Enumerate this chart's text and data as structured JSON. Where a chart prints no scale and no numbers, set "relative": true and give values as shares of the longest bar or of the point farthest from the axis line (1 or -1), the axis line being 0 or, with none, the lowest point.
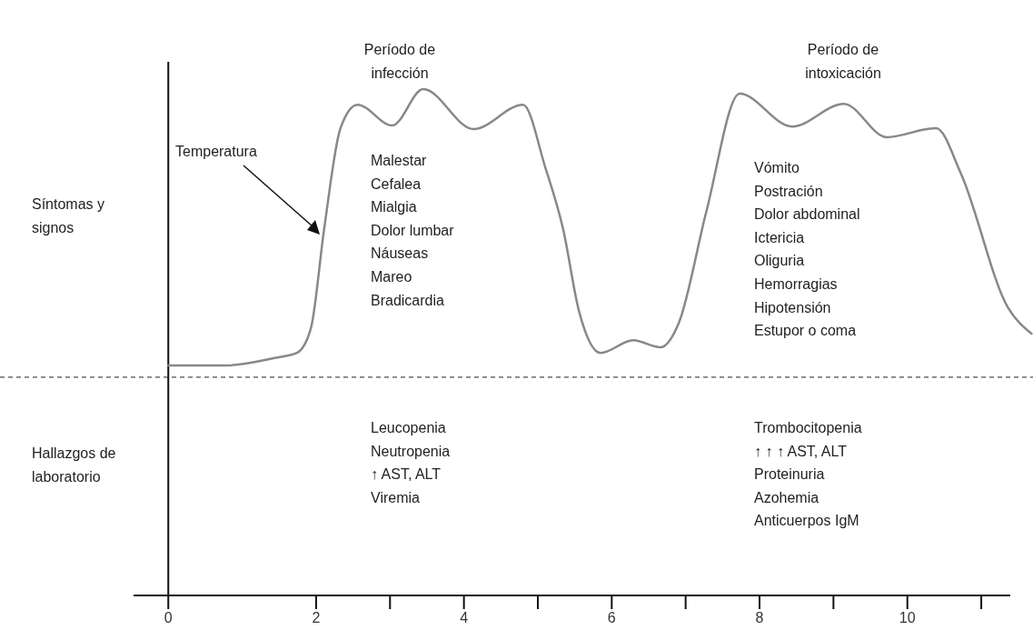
{
  "chart_data": {
    "type": "line",
    "relative": true,
    "xlim": [
      -0.47,
      11.7
    ],
    "xticks": [
      0,
      2,
      {
        "value": 3,
        "label": null
      },
      4,
      {
        "value": 5,
        "label": null
      },
      6,
      {
        "value": 7,
        "label": null
      },
      8,
      {
        "value": 9,
        "label": null
      },
      10,
      {
        "value": 11,
        "label": null
      }
    ],
    "series": [
      {
        "name": null,
        "color": "#888888",
        "x": [
          0,
          0.76,
          1.44,
          1.74,
          1.93,
          2.11,
          2.33,
          2.56,
          3.03,
          3.45,
          4.13,
          4.8,
          5.1,
          5.34,
          5.56,
          5.85,
          6.29,
          6.66,
          6.91,
          7.28,
          7.73,
          8.44,
          9.14,
          9.72,
          10.39,
          10.72,
          11.36,
          11.68
        ],
        "values": [
          0.454,
          0.454,
          0.469,
          0.479,
          0.528,
          0.725,
          0.923,
          0.969,
          0.928,
          1.0,
          0.921,
          0.969,
          0.846,
          0.725,
          0.56,
          0.479,
          0.504,
          0.49,
          0.539,
          0.758,
          0.991,
          0.926,
          0.971,
          0.905,
          0.923,
          0.835,
          0.569,
          0.517
        ]
      }
    ],
    "ref_lines": [
      {
        "axis": "y",
        "value": 0.431,
        "line_style": "dashed",
        "color": "#222222"
      }
    ],
    "annotations": [
      "Período de\ninfección",
      "Período de\nintoxicación",
      "Síntomas y\nsignos",
      "Hallazgos de\nlaboratorio",
      "Malestar\nCefalea\nMialgia\nDolor lumbar\nNáuseas\nMareo\nBradicardia",
      "Vómito\nPostración\nDolor abdominal\nIctericia\nOliguria\nHemorragias\nHipotensión\nEstupor o coma",
      "Leucopenia\nNeutropenia\n↑ AST, ALT\nViremia",
      "Trombocitopenia\n↑ ↑ ↑ AST, ALT\nProteinuria\nAzohemia\nAnticuerpos IgM",
      "Temperatura"
    ]
  }
}
